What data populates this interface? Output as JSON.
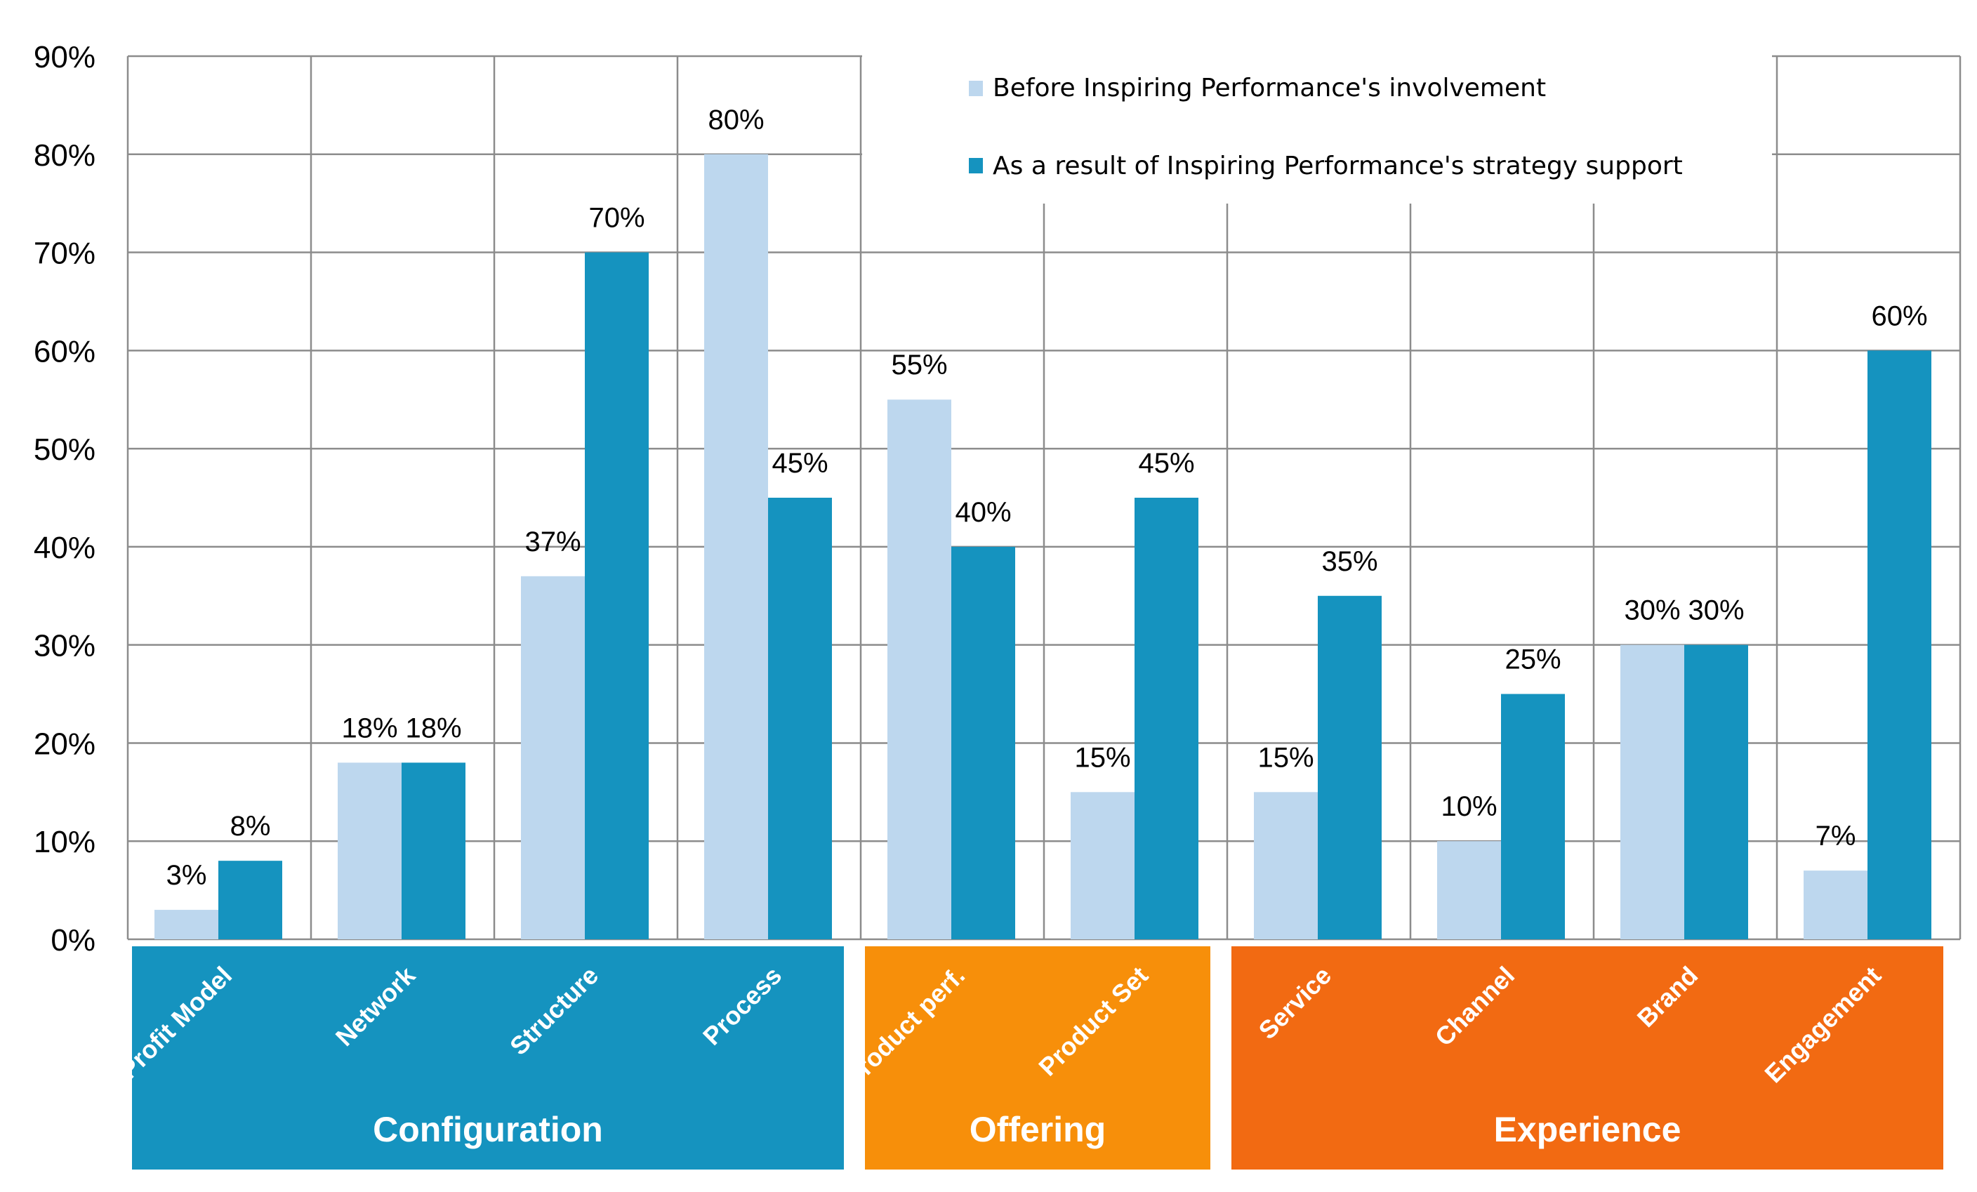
{
  "chart_data": {
    "type": "bar",
    "categories": [
      "Profit Model",
      "Network",
      "Structure",
      "Process",
      "Product perf.",
      "Product Set",
      "Service",
      "Channel",
      "Brand",
      "Engagement"
    ],
    "series": [
      {
        "name": "Before Inspiring Performance's involvement",
        "color": "#bdd7ee",
        "values": [
          3,
          18,
          37,
          80,
          55,
          15,
          15,
          10,
          30,
          7
        ],
        "labels": [
          "3%",
          "18%",
          "37%",
          "80%",
          "55%",
          "15%",
          "15%",
          "10%",
          "30%",
          "7%"
        ]
      },
      {
        "name": "As a result of Inspiring Performance's strategy support",
        "color": "#1593bf",
        "values": [
          8,
          18,
          70,
          45,
          40,
          45,
          35,
          25,
          30,
          60
        ],
        "labels": [
          "8%",
          "18%",
          "70%",
          "45%",
          "40%",
          "45%",
          "35%",
          "25%",
          "30%",
          "60%"
        ]
      }
    ],
    "yticks": [
      "0%",
      "10%",
      "20%",
      "30%",
      "40%",
      "50%",
      "60%",
      "70%",
      "80%",
      "90%"
    ],
    "ylim": [
      0,
      90
    ],
    "grid": true,
    "legend_position": "top-right",
    "groups": [
      {
        "label": "Configuration",
        "color": "#1593bf",
        "start": 0,
        "end": 3
      },
      {
        "label": "Offering",
        "color": "#f78f0a",
        "start": 4,
        "end": 5
      },
      {
        "label": "Experience",
        "color": "#f26a12",
        "start": 6,
        "end": 9
      }
    ]
  }
}
